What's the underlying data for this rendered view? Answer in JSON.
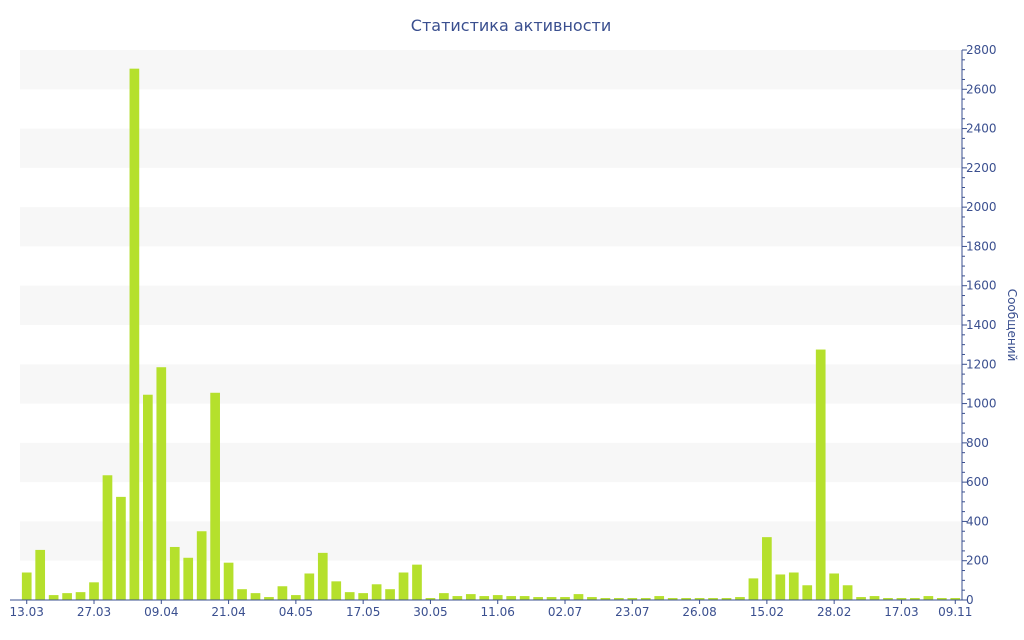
{
  "chart_data": {
    "type": "bar",
    "title": "Статистика активности",
    "ylabel": "Сообщений",
    "xlabel": "",
    "ylim": [
      0,
      2800
    ],
    "yticks": [
      0,
      200,
      400,
      600,
      800,
      1000,
      1200,
      1400,
      1600,
      1800,
      2000,
      2200,
      2400,
      2600,
      2800
    ],
    "y_axis_side": "right",
    "grid": "alternating horizontal bands",
    "bar_color": "#b5e02c",
    "band_color": "#f7f7f7",
    "axis_color": "#3a4f8f",
    "values": [
      140,
      255,
      25,
      35,
      40,
      90,
      635,
      525,
      2705,
      1045,
      1185,
      270,
      215,
      350,
      1055,
      190,
      55,
      35,
      15,
      70,
      25,
      135,
      240,
      95,
      40,
      35,
      80,
      55,
      140,
      180,
      10,
      35,
      20,
      30,
      20,
      25,
      20,
      20,
      15,
      15,
      15,
      30,
      15,
      10,
      10,
      10,
      10,
      20,
      10,
      10,
      10,
      10,
      10,
      15,
      110,
      320,
      130,
      140,
      75,
      1275,
      135,
      75,
      15,
      20,
      10,
      10,
      10,
      20,
      10,
      10
    ],
    "x_tick_labels": [
      {
        "label": "13.03",
        "index": 0
      },
      {
        "label": "27.03",
        "index": 5
      },
      {
        "label": "09.04",
        "index": 10
      },
      {
        "label": "21.04",
        "index": 15
      },
      {
        "label": "04.05",
        "index": 20
      },
      {
        "label": "17.05",
        "index": 25
      },
      {
        "label": "30.05",
        "index": 30
      },
      {
        "label": "11.06",
        "index": 35
      },
      {
        "label": "02.07",
        "index": 40
      },
      {
        "label": "23.07",
        "index": 45
      },
      {
        "label": "26.08",
        "index": 50
      },
      {
        "label": "15.02",
        "index": 55
      },
      {
        "label": "28.02",
        "index": 60
      },
      {
        "label": "17.03",
        "index": 65
      },
      {
        "label": "09.11",
        "index": 69
      }
    ]
  }
}
